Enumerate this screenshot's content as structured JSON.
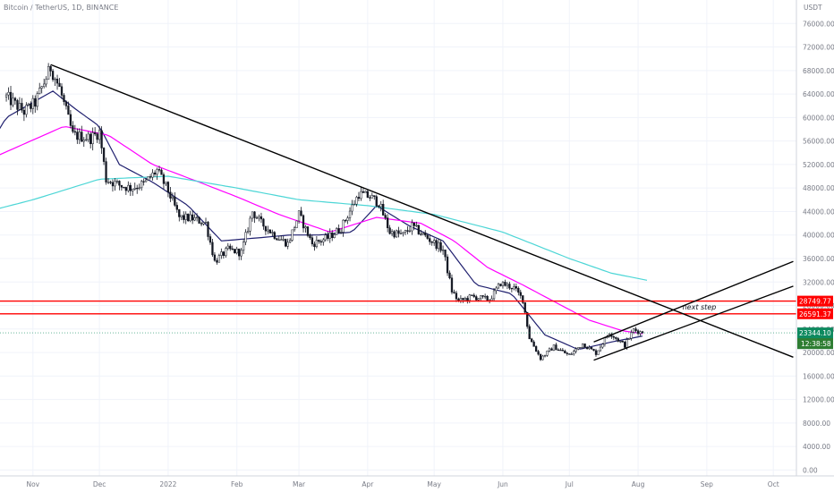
{
  "header": {
    "symbol_line": "Bitcoin / TetherUS, 1D, BINANCE"
  },
  "colors": {
    "candle": "#131722",
    "ema_fast": "#1f1f6e",
    "ema_mid": "#ff00ff",
    "ema_slow": "#4dd6d6",
    "level": "#ff0000",
    "current_price_tag": "#0e8a5f",
    "countdown_tag": "#2e7d32",
    "trendline": "#000000"
  },
  "chart_data": {
    "type": "candlestick",
    "currency_label": "USDT",
    "x_tick_labels": [
      "Nov",
      "Dec",
      "2022",
      "Feb",
      "Mar",
      "Apr",
      "May",
      "Jun",
      "Jul",
      "Aug",
      "Sep",
      "Oct"
    ],
    "y_tick_labels": [
      "76000.00",
      "72000.00",
      "68000.00",
      "64000.00",
      "60000.00",
      "56000.00",
      "52000.00",
      "48000.00",
      "44000.00",
      "40000.00",
      "36000.00",
      "32000.00",
      "28000.00",
      "24000.00",
      "20000.00",
      "16000.00",
      "12000.00",
      "8000.00",
      "4000.00",
      "0.00"
    ],
    "y_range": [
      -1000,
      80000
    ],
    "close_path_knots": [
      [
        "2021-10-20",
        63500
      ],
      [
        "2021-10-28",
        61000
      ],
      [
        "2021-11-02",
        62500
      ],
      [
        "2021-11-09",
        68500
      ],
      [
        "2021-11-13",
        65000
      ],
      [
        "2021-11-19",
        57000
      ],
      [
        "2021-11-27",
        56500
      ],
      [
        "2021-12-01",
        57500
      ],
      [
        "2021-12-04",
        49500
      ],
      [
        "2021-12-10",
        48500
      ],
      [
        "2021-12-15",
        48000
      ],
      [
        "2021-12-21",
        48700
      ],
      [
        "2021-12-27",
        51000
      ],
      [
        "2022-01-01",
        47500
      ],
      [
        "2022-01-06",
        43000
      ],
      [
        "2022-01-12",
        42800
      ],
      [
        "2022-01-18",
        42000
      ],
      [
        "2022-01-22",
        35500
      ],
      [
        "2022-01-28",
        37500
      ],
      [
        "2022-02-03",
        37000
      ],
      [
        "2022-02-08",
        44000
      ],
      [
        "2022-02-12",
        42000
      ],
      [
        "2022-02-18",
        40000
      ],
      [
        "2022-02-24",
        38500
      ],
      [
        "2022-03-01",
        43500
      ],
      [
        "2022-03-07",
        38500
      ],
      [
        "2022-03-14",
        39500
      ],
      [
        "2022-03-20",
        41200
      ],
      [
        "2022-03-28",
        47000
      ],
      [
        "2022-04-02",
        46500
      ],
      [
        "2022-04-06",
        45500
      ],
      [
        "2022-04-11",
        40500
      ],
      [
        "2022-04-17",
        40000
      ],
      [
        "2022-04-21",
        41500
      ],
      [
        "2022-04-28",
        39500
      ],
      [
        "2022-05-05",
        37500
      ],
      [
        "2022-05-09",
        30500
      ],
      [
        "2022-05-12",
        28700
      ],
      [
        "2022-05-18",
        29500
      ],
      [
        "2022-05-26",
        29000
      ],
      [
        "2022-05-31",
        31800
      ],
      [
        "2022-06-06",
        31000
      ],
      [
        "2022-06-10",
        29000
      ],
      [
        "2022-06-13",
        22500
      ],
      [
        "2022-06-18",
        19000
      ],
      [
        "2022-06-24",
        21000
      ],
      [
        "2022-07-01",
        19500
      ],
      [
        "2022-07-07",
        21500
      ],
      [
        "2022-07-13",
        19900
      ],
      [
        "2022-07-19",
        23400
      ],
      [
        "2022-07-26",
        21200
      ],
      [
        "2022-07-30",
        23900
      ],
      [
        "2022-08-03",
        23344
      ]
    ],
    "current_price": 23344.1,
    "countdown": "12:38:58",
    "horizontal_levels": [
      28749.77,
      26591.37
    ],
    "moving_averages": [
      {
        "color_key": "ema_fast",
        "knots": [
          [
            "2021-10-01",
            48000
          ],
          [
            "2021-10-20",
            60000
          ],
          [
            "2021-11-10",
            64500
          ],
          [
            "2021-11-20",
            61500
          ],
          [
            "2021-12-01",
            58500
          ],
          [
            "2021-12-10",
            52000
          ],
          [
            "2021-12-25",
            49000
          ],
          [
            "2022-01-10",
            45000
          ],
          [
            "2022-01-25",
            39000
          ],
          [
            "2022-02-10",
            39500
          ],
          [
            "2022-02-25",
            40000
          ],
          [
            "2022-03-10",
            40000
          ],
          [
            "2022-03-25",
            40500
          ],
          [
            "2022-04-05",
            45000
          ],
          [
            "2022-04-20",
            41500
          ],
          [
            "2022-05-05",
            39000
          ],
          [
            "2022-05-20",
            31500
          ],
          [
            "2022-06-05",
            30000
          ],
          [
            "2022-06-20",
            23000
          ],
          [
            "2022-07-05",
            20500
          ],
          [
            "2022-07-20",
            21800
          ],
          [
            "2022-08-03",
            22800
          ]
        ]
      },
      {
        "color_key": "ema_mid",
        "knots": [
          [
            "2021-10-01",
            51000
          ],
          [
            "2021-10-25",
            55000
          ],
          [
            "2021-11-15",
            58500
          ],
          [
            "2021-12-05",
            57000
          ],
          [
            "2021-12-25",
            52000
          ],
          [
            "2022-01-15",
            49000
          ],
          [
            "2022-02-01",
            46500
          ],
          [
            "2022-02-20",
            43500
          ],
          [
            "2022-03-15",
            40500
          ],
          [
            "2022-04-05",
            43000
          ],
          [
            "2022-04-25",
            42000
          ],
          [
            "2022-05-10",
            39000
          ],
          [
            "2022-05-25",
            34500
          ],
          [
            "2022-06-10",
            31500
          ],
          [
            "2022-06-25",
            28500
          ],
          [
            "2022-07-10",
            25500
          ],
          [
            "2022-07-25",
            23700
          ],
          [
            "2022-08-03",
            23200
          ]
        ]
      },
      {
        "color_key": "ema_slow",
        "knots": [
          [
            "2021-10-01",
            43000
          ],
          [
            "2021-11-01",
            46000
          ],
          [
            "2021-12-01",
            49500
          ],
          [
            "2022-01-01",
            50000
          ],
          [
            "2022-02-01",
            48000
          ],
          [
            "2022-03-01",
            46000
          ],
          [
            "2022-04-01",
            45000
          ],
          [
            "2022-05-01",
            43500
          ],
          [
            "2022-06-01",
            40500
          ],
          [
            "2022-07-01",
            36000
          ],
          [
            "2022-07-20",
            33500
          ],
          [
            "2022-08-05",
            32300
          ]
        ]
      }
    ],
    "trendlines": [
      {
        "from": [
          "2021-11-09",
          69000
        ],
        "to": [
          "2022-10-10",
          19200
        ]
      },
      {
        "from": [
          "2022-07-12",
          18700
        ],
        "to": [
          "2022-10-10",
          31300
        ]
      },
      {
        "from": [
          "2022-07-12",
          21800
        ],
        "to": [
          "2022-10-10",
          35500
        ]
      }
    ],
    "annotations": [
      {
        "text": "next step",
        "at": [
          "2022-08-21",
          27300
        ]
      }
    ]
  }
}
